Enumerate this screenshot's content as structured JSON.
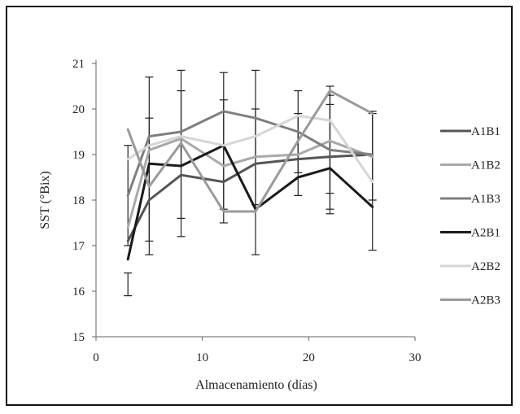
{
  "chart_data": {
    "type": "line",
    "xlabel": "Almacenamiento (días)",
    "ylabel": "SST (°Bix)",
    "xlim": [
      0,
      30
    ],
    "ylim": [
      15,
      21
    ],
    "x_ticks": [
      "0",
      "10",
      "20",
      "30"
    ],
    "y_ticks": [
      "15",
      "16",
      "17",
      "18",
      "19",
      "20",
      "21"
    ],
    "grid": false,
    "legend_position": "right",
    "x": [
      3,
      5,
      8,
      12,
      15,
      19,
      22,
      26
    ],
    "series": [
      {
        "name": "A1B1",
        "color": "#555555",
        "width": 3,
        "values": [
          17.1,
          18.0,
          18.55,
          18.4,
          18.8,
          18.9,
          18.95,
          19.0
        ]
      },
      {
        "name": "A1B2",
        "color": "#a9a9a9",
        "width": 3,
        "values": [
          17.4,
          19.1,
          19.35,
          18.75,
          18.95,
          19.0,
          19.3,
          18.95
        ]
      },
      {
        "name": "A1B3",
        "color": "#7f7f7f",
        "width": 3,
        "values": [
          18.1,
          19.4,
          19.5,
          19.95,
          19.8,
          19.5,
          19.1,
          19.0
        ]
      },
      {
        "name": "A2B1",
        "color": "#1a1a1a",
        "width": 3,
        "values": [
          16.7,
          18.8,
          18.75,
          19.2,
          17.8,
          18.5,
          18.7,
          17.85
        ]
      },
      {
        "name": "A2B2",
        "color": "#d6d6d6",
        "width": 3,
        "values": [
          18.9,
          19.2,
          19.4,
          19.2,
          19.4,
          19.85,
          19.75,
          18.4
        ]
      },
      {
        "name": "A2B3",
        "color": "#9a9a9a",
        "width": 3,
        "values": [
          19.55,
          18.3,
          19.25,
          17.75,
          17.75,
          19.3,
          20.4,
          19.9
        ]
      }
    ],
    "error_bars": [
      {
        "x": 3,
        "low": 15.9,
        "high": 16.4
      },
      {
        "x": 3,
        "low": 17.0,
        "high": 19.2
      },
      {
        "x": 5,
        "low": 16.8,
        "high": 20.7
      },
      {
        "x": 5,
        "low": 17.1,
        "high": 19.8
      },
      {
        "x": 8,
        "low": 17.2,
        "high": 20.85
      },
      {
        "x": 8,
        "low": 17.6,
        "high": 20.4
      },
      {
        "x": 12,
        "low": 17.5,
        "high": 20.8
      },
      {
        "x": 12,
        "low": 17.8,
        "high": 20.2
      },
      {
        "x": 15,
        "low": 16.8,
        "high": 20.85
      },
      {
        "x": 15,
        "low": 17.9,
        "high": 20.0
      },
      {
        "x": 19,
        "low": 18.1,
        "high": 20.4
      },
      {
        "x": 19,
        "low": 18.6,
        "high": 19.9
      },
      {
        "x": 22,
        "low": 17.7,
        "high": 20.5
      },
      {
        "x": 22,
        "low": 17.8,
        "high": 20.3
      },
      {
        "x": 22,
        "low": 18.15,
        "high": 20.1
      },
      {
        "x": 26,
        "low": 16.9,
        "high": 19.95
      },
      {
        "x": 26,
        "low": 18.0,
        "high": 19.9
      }
    ]
  }
}
